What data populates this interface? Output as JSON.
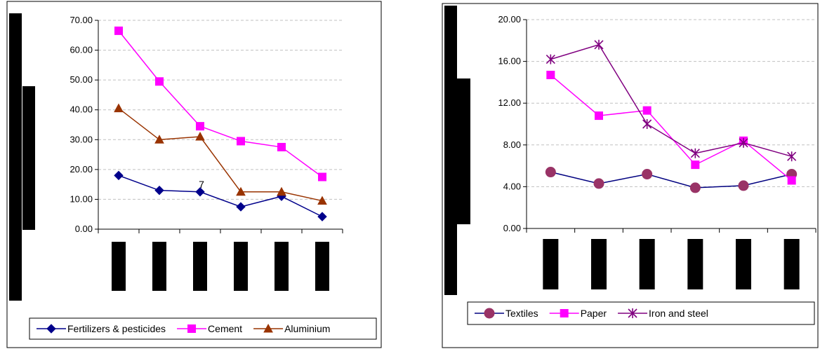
{
  "chart_data": [
    {
      "type": "line",
      "categories": [
        "",
        "",
        "",
        "",
        "",
        ""
      ],
      "ylim": [
        0,
        70
      ],
      "y_ticks": [
        "0.00",
        "10.00",
        "20.00",
        "30.00",
        "40.00",
        "50.00",
        "60.00",
        "70.00"
      ],
      "grid": true,
      "legend": "bottom",
      "annotation": "7",
      "series": [
        {
          "name": "Fertilizers & pesticides",
          "values": [
            18.0,
            13.0,
            12.5,
            7.5,
            11.0,
            4.2
          ],
          "color": "#00008B",
          "marker": "diamond"
        },
        {
          "name": "Cement",
          "values": [
            66.5,
            49.5,
            34.5,
            29.5,
            27.5,
            17.5
          ],
          "color": "#FF00FF",
          "marker": "square"
        },
        {
          "name": "Aluminium",
          "values": [
            40.5,
            30.0,
            31.0,
            12.5,
            12.5,
            9.5
          ],
          "color": "#993300",
          "marker": "triangle"
        }
      ]
    },
    {
      "type": "line",
      "categories": [
        "",
        "",
        "",
        "",
        "",
        ""
      ],
      "ylim": [
        0,
        20
      ],
      "y_ticks": [
        "0.00",
        "4.00",
        "8.00",
        "12.00",
        "16.00",
        "20.00"
      ],
      "grid": true,
      "legend": "bottom",
      "series": [
        {
          "name": "Textiles",
          "values": [
            5.4,
            4.3,
            5.2,
            3.9,
            4.1,
            5.2
          ],
          "color": "#000080",
          "marker_color": "#993366",
          "marker": "circle"
        },
        {
          "name": "Paper",
          "values": [
            14.7,
            10.8,
            11.3,
            6.1,
            8.4,
            4.6
          ],
          "color": "#FF00FF",
          "marker": "square"
        },
        {
          "name": "Iron and steel",
          "values": [
            16.2,
            17.6,
            10.0,
            7.2,
            8.2,
            6.9
          ],
          "color": "#800080",
          "marker": "asterisk"
        }
      ]
    }
  ]
}
